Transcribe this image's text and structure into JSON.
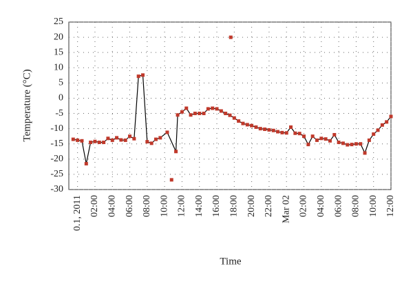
{
  "chart_data": {
    "type": "line",
    "x_label": "Time",
    "y_label": "Temperature (°C)",
    "xlim": [
      -1,
      36
    ],
    "ylim": [
      -30,
      25
    ],
    "xticks": [
      {
        "value": 0,
        "label": "0.1, 2011"
      },
      {
        "value": 2,
        "label": "02:00"
      },
      {
        "value": 4,
        "label": "04:00"
      },
      {
        "value": 6,
        "label": "06:00"
      },
      {
        "value": 8,
        "label": "08:00"
      },
      {
        "value": 10,
        "label": "10:00"
      },
      {
        "value": 12,
        "label": "12:00"
      },
      {
        "value": 14,
        "label": "14:00"
      },
      {
        "value": 16,
        "label": "16:00"
      },
      {
        "value": 18,
        "label": "18:00"
      },
      {
        "value": 20,
        "label": "20:00"
      },
      {
        "value": 22,
        "label": "22:00"
      },
      {
        "value": 24,
        "label": "Mar 02"
      },
      {
        "value": 26,
        "label": "02:00"
      },
      {
        "value": 28,
        "label": "04:00"
      },
      {
        "value": 30,
        "label": "06:00"
      },
      {
        "value": 32,
        "label": "08:00"
      },
      {
        "value": 34,
        "label": "10:00"
      },
      {
        "value": 36,
        "label": "12:00"
      }
    ],
    "yticks": [
      -30,
      -25,
      -20,
      -15,
      -10,
      -5,
      0,
      5,
      10,
      15,
      20,
      25
    ],
    "grid": true,
    "line_color": "#000000",
    "series": [
      {
        "color": "#c0392b",
        "line": true,
        "x": [
          -0.5,
          0,
          0.5,
          1,
          1.5,
          2,
          2.5,
          3,
          3.5,
          4,
          4.5,
          5,
          5.5,
          6,
          6.5,
          7,
          7.5,
          8,
          8.5,
          9,
          9.5,
          10.3,
          11.3,
          11.5,
          12,
          12.5,
          13,
          13.5,
          14,
          14.5,
          15,
          15.5,
          16,
          16.5,
          17,
          17.5,
          18,
          18.5,
          19,
          19.5,
          20,
          20.5,
          21,
          21.5,
          22,
          22.5,
          23,
          23.5,
          24,
          24.5,
          25,
          25.5,
          26,
          26.5,
          27,
          27.5,
          28,
          28.5,
          29,
          29.5,
          30,
          30.5,
          31,
          31.5,
          32,
          32.5,
          33,
          33.5,
          34,
          34.5,
          35,
          35.5,
          36
        ],
        "values": [
          -13.5,
          -13.8,
          -14,
          -21.5,
          -14.5,
          -14.2,
          -14.5,
          -14.5,
          -13.2,
          -13.8,
          -13,
          -13.7,
          -13.8,
          -12.5,
          -13.3,
          7.2,
          7.6,
          -14.3,
          -14.8,
          -13.5,
          -13,
          -11.2,
          -17.5,
          -5.5,
          -4.5,
          -3.3,
          -5.5,
          -5,
          -5,
          -5,
          -3.5,
          -3.3,
          -3.5,
          -4.2,
          -5,
          -5.6,
          -6.5,
          -7.5,
          -8.3,
          -8.7,
          -9,
          -9.5,
          -10,
          -10.2,
          -10.4,
          -10.6,
          -11,
          -11.3,
          -11.4,
          -9.5,
          -11.5,
          -11.6,
          -12.5,
          -15.2,
          -12.5,
          -13.8,
          -13.2,
          -13.4,
          -14,
          -12,
          -14.5,
          -14.8,
          -15.3,
          -15.2,
          -15,
          -15,
          -18,
          -13.8,
          -11.8,
          -10.5,
          -8.8,
          -7.8,
          -6
        ]
      },
      {
        "color": "#c0392b",
        "line": false,
        "x": [
          10.8,
          17.6
        ],
        "values": [
          -26.8,
          20
        ]
      }
    ]
  }
}
